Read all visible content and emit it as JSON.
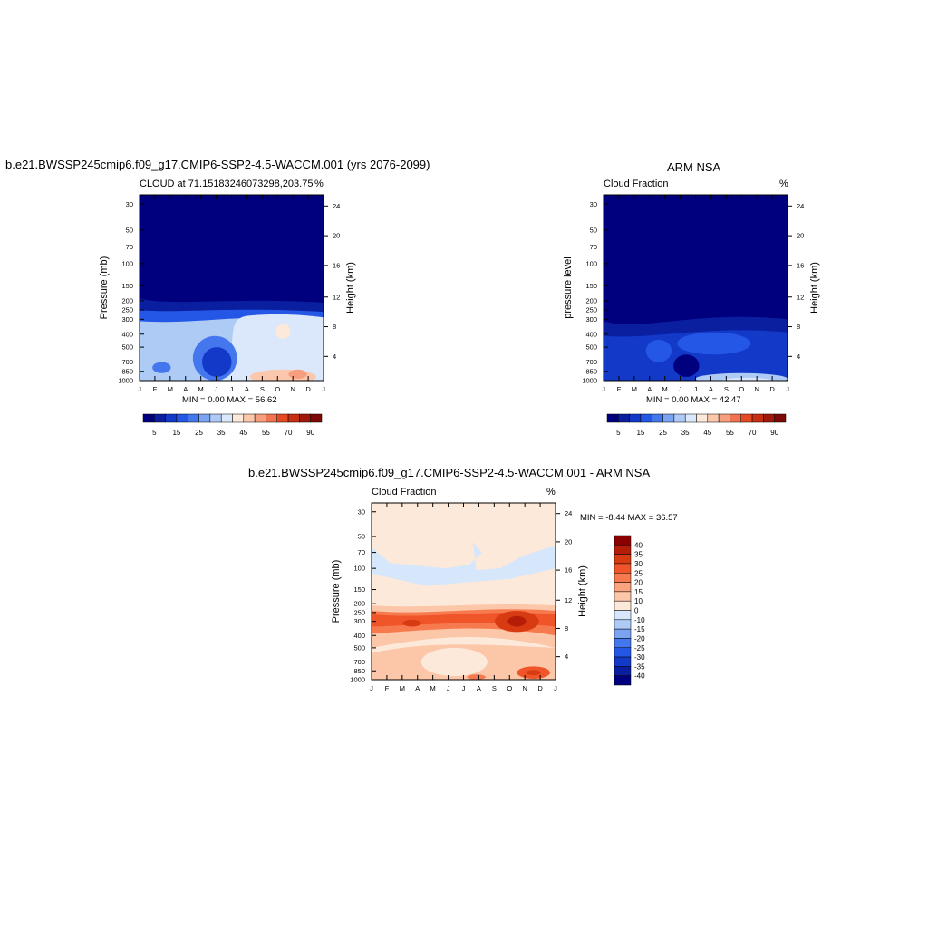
{
  "colors": {
    "frame": "#000000",
    "deep_blue": "#00007f",
    "panel_bg": "#fde9d9"
  },
  "chart_data": [
    {
      "type": "heatmap",
      "id": "model",
      "title": "b.e21.BWSSP245cmip6.f09_g17.CMIP6-SSP2-4.5-WACCM.001 (yrs 2076-2099)",
      "subtitle_left": "CLOUD at 71.15183246073298,203.75",
      "subtitle_right": "%",
      "ylabel": "Pressure (mb)",
      "ylabel_right": "Height (km)",
      "x_ticks": [
        "J",
        "F",
        "M",
        "A",
        "M",
        "J",
        "J",
        "A",
        "S",
        "O",
        "N",
        "D",
        "J"
      ],
      "y_ticks": [
        "30",
        "50",
        "70",
        "100",
        "150",
        "200",
        "250",
        "300",
        "400",
        "500",
        "700",
        "850",
        "1000"
      ],
      "y_ticks_right": [
        "24",
        "20",
        "16",
        "12",
        "8",
        "4"
      ],
      "stats": "MIN =   0.00 MAX =  56.62",
      "colorbar_labels": [
        "5",
        "15",
        "25",
        "35",
        "45",
        "55",
        "70",
        "90"
      ],
      "colorbar_colors": [
        "#00007f",
        "#0a1fa0",
        "#1339c8",
        "#2457e6",
        "#4477ee",
        "#7aa3f2",
        "#aecbf6",
        "#dbe8fb",
        "#fde9d9",
        "#fbc8ae",
        "#f79e7e",
        "#f0744f",
        "#e44a24",
        "#c82e10",
        "#a1190a",
        "#7d0a05"
      ]
    },
    {
      "type": "heatmap",
      "id": "obs",
      "title": "ARM NSA",
      "subtitle_left": "Cloud Fraction",
      "subtitle_right": "%",
      "ylabel": "pressure level",
      "ylabel_right": "Height (km)",
      "x_ticks": [
        "J",
        "F",
        "M",
        "A",
        "M",
        "J",
        "J",
        "A",
        "S",
        "O",
        "N",
        "D",
        "J"
      ],
      "y_ticks": [
        "30",
        "50",
        "70",
        "100",
        "150",
        "200",
        "250",
        "300",
        "400",
        "500",
        "700",
        "850",
        "1000"
      ],
      "y_ticks_right": [
        "24",
        "20",
        "16",
        "12",
        "8",
        "4"
      ],
      "stats": "MIN =   0.00 MAX =  42.47",
      "colorbar_labels": [
        "5",
        "15",
        "25",
        "35",
        "45",
        "55",
        "70",
        "90"
      ],
      "colorbar_colors": [
        "#00007f",
        "#0a1fa0",
        "#1339c8",
        "#2457e6",
        "#4477ee",
        "#7aa3f2",
        "#aecbf6",
        "#dbe8fb",
        "#fde9d9",
        "#fbc8ae",
        "#f79e7e",
        "#f0744f",
        "#e44a24",
        "#c82e10",
        "#a1190a",
        "#7d0a05"
      ]
    },
    {
      "type": "heatmap",
      "id": "diff",
      "title": "b.e21.BWSSP245cmip6.f09_g17.CMIP6-SSP2-4.5-WACCM.001 - ARM NSA",
      "subtitle_left": "Cloud Fraction",
      "subtitle_right": "%",
      "ylabel": "Pressure (mb)",
      "ylabel_right": "Height (km)",
      "x_ticks": [
        "J",
        "F",
        "M",
        "A",
        "M",
        "J",
        "J",
        "A",
        "S",
        "O",
        "N",
        "D",
        "J"
      ],
      "y_ticks": [
        "30",
        "50",
        "70",
        "100",
        "150",
        "200",
        "250",
        "300",
        "400",
        "500",
        "700",
        "850",
        "1000"
      ],
      "y_ticks_right": [
        "24",
        "20",
        "16",
        "12",
        "8",
        "4"
      ],
      "stats": "MIN =  -8.44 MAX =  36.57",
      "colorbar_labels": [
        "40",
        "35",
        "30",
        "25",
        "20",
        "15",
        "10",
        "0",
        "-10",
        "-15",
        "-20",
        "-25",
        "-30",
        "-35",
        "-40"
      ],
      "colorbar_colors": [
        "#8b0000",
        "#b51d08",
        "#d83a12",
        "#f0552a",
        "#f77a4f",
        "#fba37e",
        "#fcc6a8",
        "#fde9d9",
        "#d6e6fb",
        "#aecbf6",
        "#7aa3f2",
        "#4477ee",
        "#2457e6",
        "#1339c8",
        "#0a1fa0",
        "#00007f"
      ]
    }
  ]
}
